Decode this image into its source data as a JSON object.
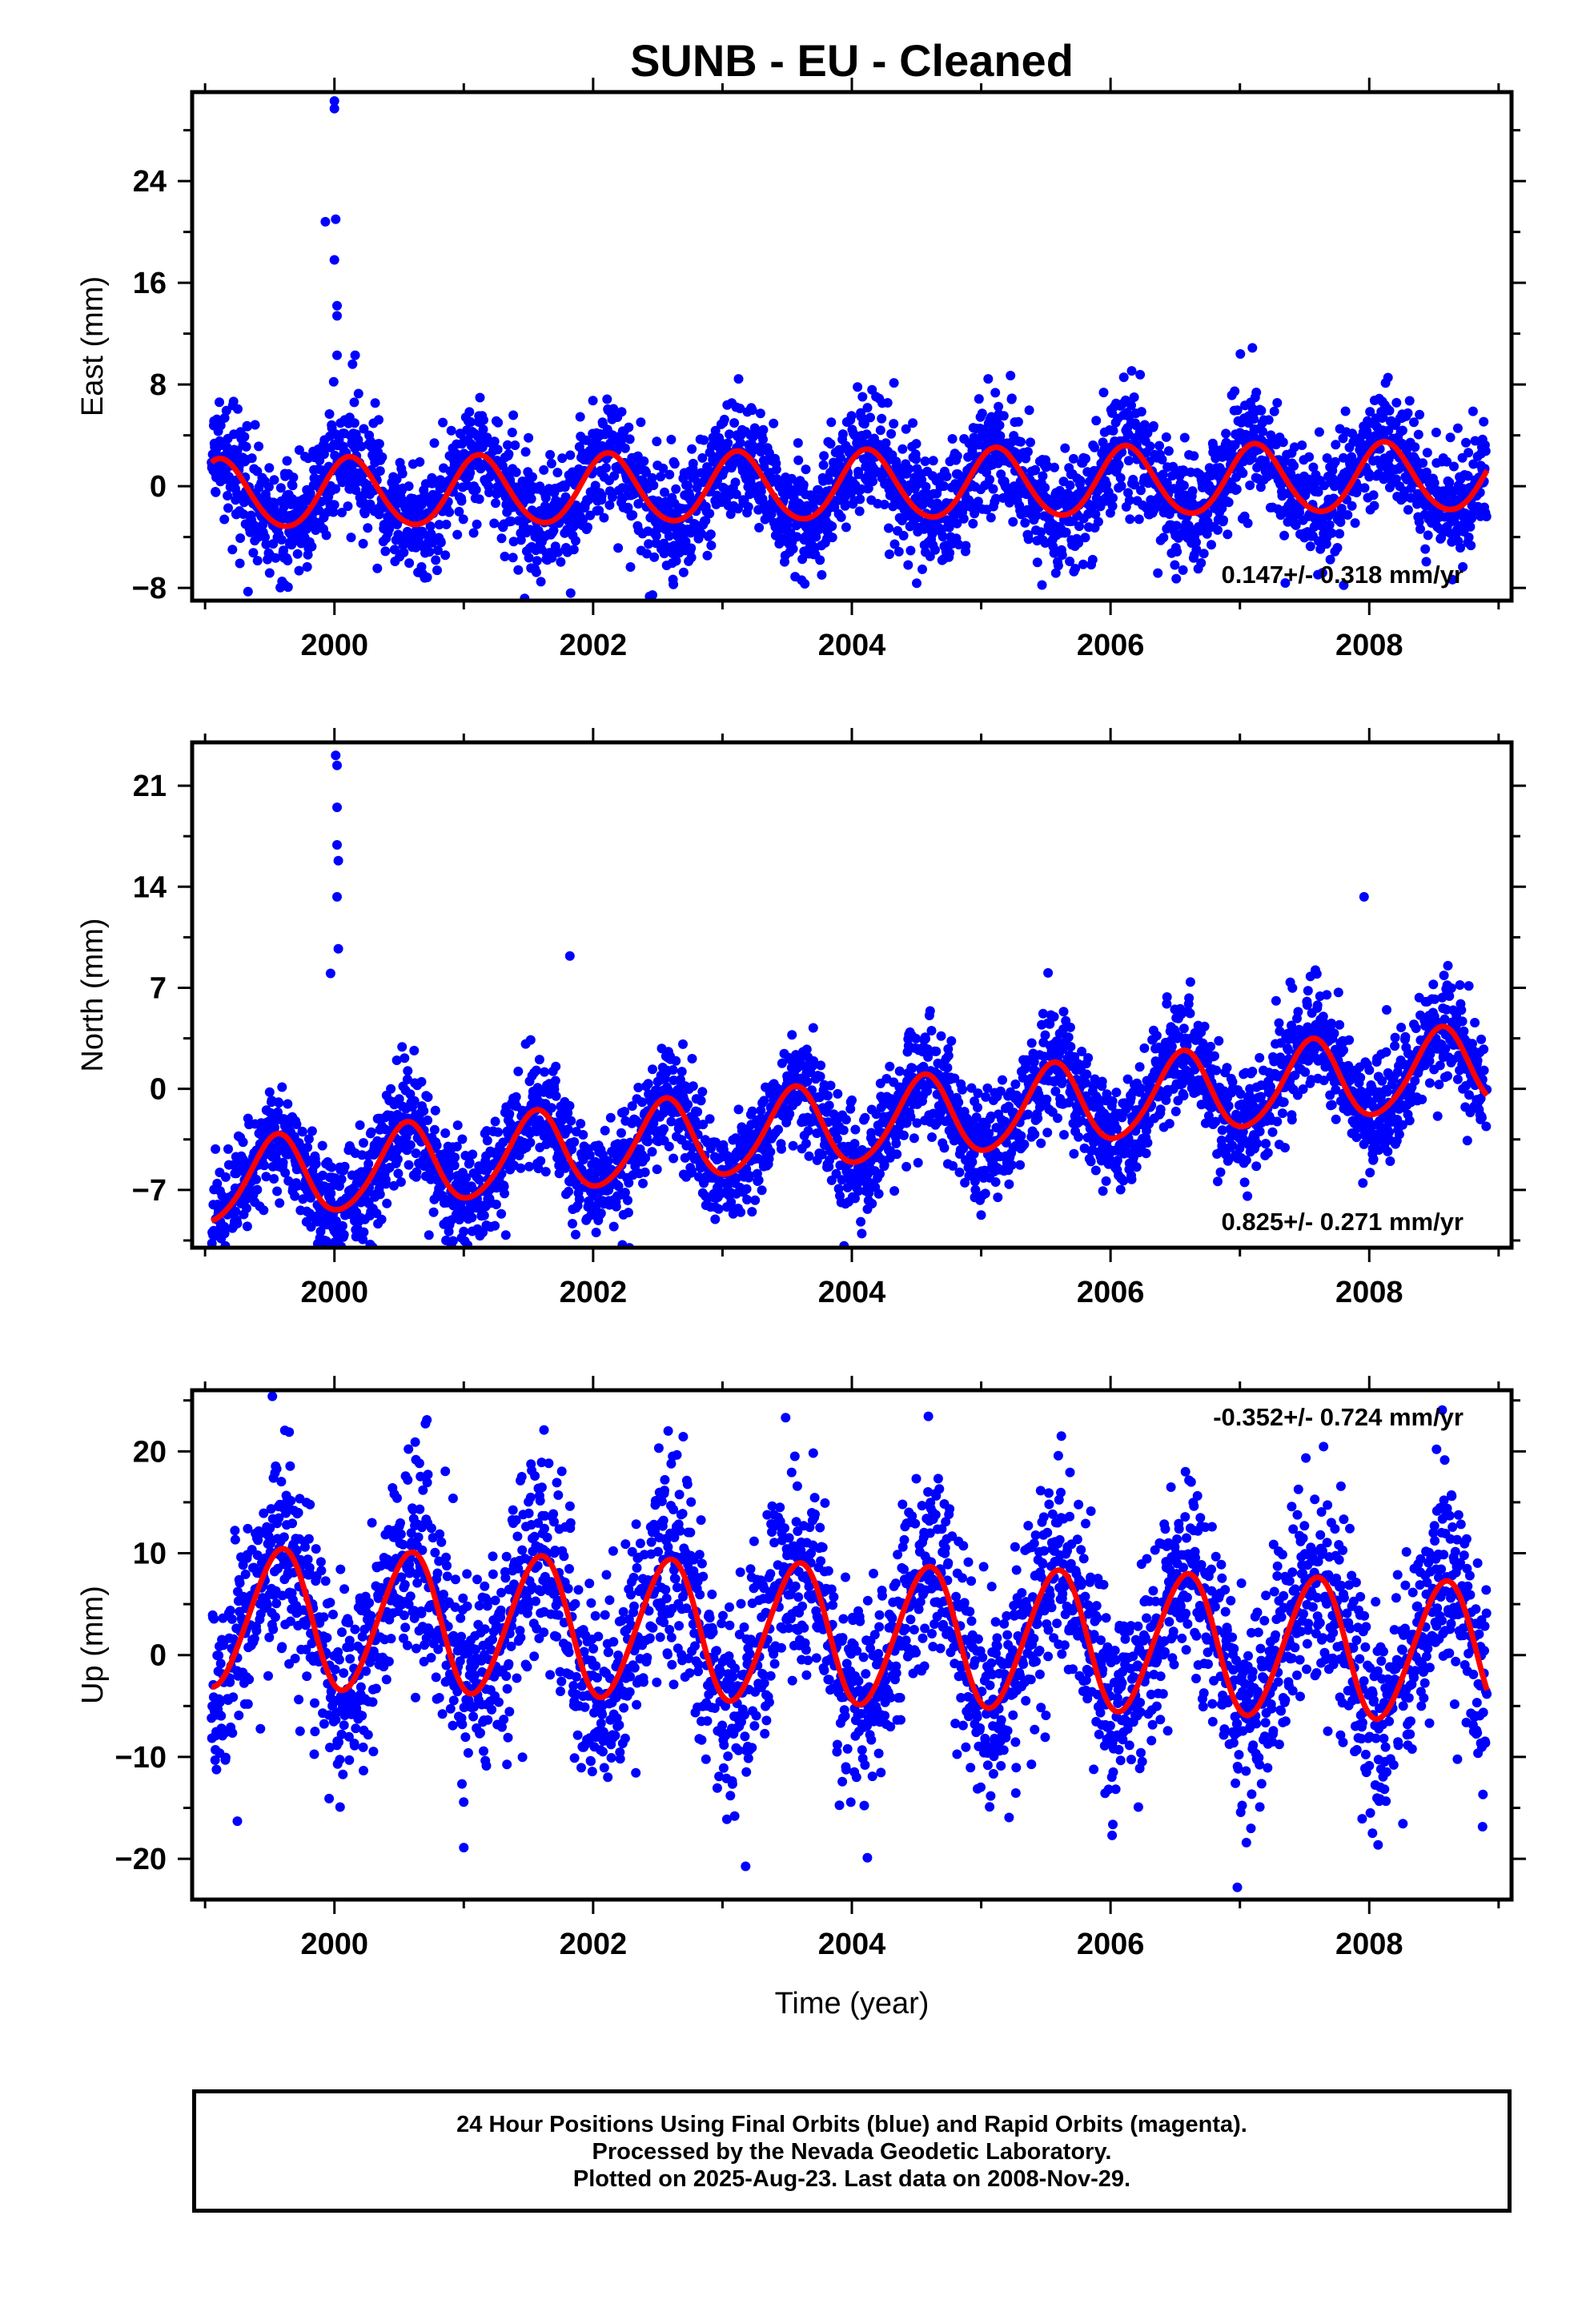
{
  "title": "SUNB  - EU - Cleaned",
  "footer": {
    "line1": "24 Hour Positions Using Final Orbits (blue) and Rapid Orbits (magenta).",
    "line2": "Processed by the Nevada Geodetic Laboratory.",
    "line3": "Plotted on 2025-Aug-23. Last data on 2008-Nov-29."
  },
  "colors": {
    "points": "#0000ff",
    "fit": "#ff0000",
    "axis": "#000000"
  },
  "chart_data": [
    {
      "type": "scatter",
      "ylabel": "East (mm)",
      "xlim": [
        1998.9,
        2009.1
      ],
      "ylim": [
        -9,
        31
      ],
      "xticks": [
        2000,
        2002,
        2004,
        2006,
        2008
      ],
      "yticks": [
        -8,
        0,
        8,
        16,
        24
      ],
      "rate_text": "0.147+/- 0.318 mm/yr",
      "rate_mm_per_yr": 0.147,
      "rate_uncertainty": 0.318,
      "x_range": [
        1999.05,
        2008.91
      ],
      "fit": {
        "intercept": 0.0,
        "rate": 0.147,
        "annual_amplitude": 2.7,
        "annual_peak_phase": 0.12,
        "semiannual_amplitude": 0.2,
        "semiannual_peak_phase": 0.1
      },
      "scatter_std": 2.3,
      "outliers": [
        [
          2000.0,
          30.3
        ],
        [
          2000.0,
          29.7
        ],
        [
          2000.01,
          21.0
        ],
        [
          2000.0,
          17.8
        ],
        [
          1999.93,
          20.8
        ],
        [
          2000.02,
          14.2
        ],
        [
          2000.02,
          13.4
        ],
        [
          2000.02,
          10.3
        ],
        [
          2000.16,
          10.3
        ],
        [
          2000.14,
          9.6
        ]
      ]
    },
    {
      "type": "scatter",
      "ylabel": "North (mm)",
      "xlim": [
        1998.9,
        2009.1
      ],
      "ylim": [
        -11,
        24
      ],
      "xticks": [
        2000,
        2002,
        2004,
        2006,
        2008
      ],
      "yticks": [
        -7,
        0,
        7,
        14,
        21
      ],
      "rate_text": "0.825+/- 0.271 mm/yr",
      "rate_mm_per_yr": 0.825,
      "rate_uncertainty": 0.271,
      "x_range": [
        1999.05,
        2008.91
      ],
      "fit": {
        "intercept": -2.5,
        "rate": 0.825,
        "annual_amplitude": 2.8,
        "annual_peak_phase": 0.55,
        "semiannual_amplitude": 0.3,
        "semiannual_peak_phase": 0.1
      },
      "scatter_std": 1.9,
      "outliers": [
        [
          2000.01,
          23.1
        ],
        [
          2000.02,
          22.4
        ],
        [
          2000.02,
          19.5
        ],
        [
          2000.02,
          16.9
        ],
        [
          2000.03,
          15.8
        ],
        [
          2000.02,
          13.3
        ],
        [
          2000.03,
          9.7
        ],
        [
          1999.97,
          8.0
        ],
        [
          2001.82,
          9.2
        ],
        [
          2007.96,
          13.3
        ]
      ]
    },
    {
      "type": "scatter",
      "ylabel": "Up (mm)",
      "xlim": [
        1998.9,
        2009.1
      ],
      "ylim": [
        -24,
        26
      ],
      "xticks": [
        2000,
        2002,
        2004,
        2006,
        2008
      ],
      "yticks": [
        -20,
        -10,
        0,
        10,
        20
      ],
      "rate_text": "-0.352+/- 0.724 mm/yr",
      "rate_mm_per_yr": -0.352,
      "rate_uncertainty": 0.724,
      "x_range": [
        1999.05,
        2008.91
      ],
      "fit": {
        "intercept": 2.0,
        "rate": -0.352,
        "annual_amplitude": 6.8,
        "annual_peak_phase": 0.58,
        "semiannual_amplitude": 0.5,
        "semiannual_peak_phase": 0.2
      },
      "scatter_std": 5.0,
      "outliers": [
        [
          1999.52,
          25.4
        ],
        [
          1999.65,
          21.9
        ],
        [
          2001.62,
          22.1
        ],
        [
          2002.58,
          22.0
        ],
        [
          2005.62,
          21.5
        ],
        [
          2006.98,
          -22.8
        ],
        [
          2008.52,
          20.2
        ],
        [
          1999.25,
          -16.3
        ],
        [
          2004.12,
          -19.9
        ],
        [
          2001.0,
          -18.9
        ]
      ]
    }
  ],
  "xlabel": "Time (year)"
}
